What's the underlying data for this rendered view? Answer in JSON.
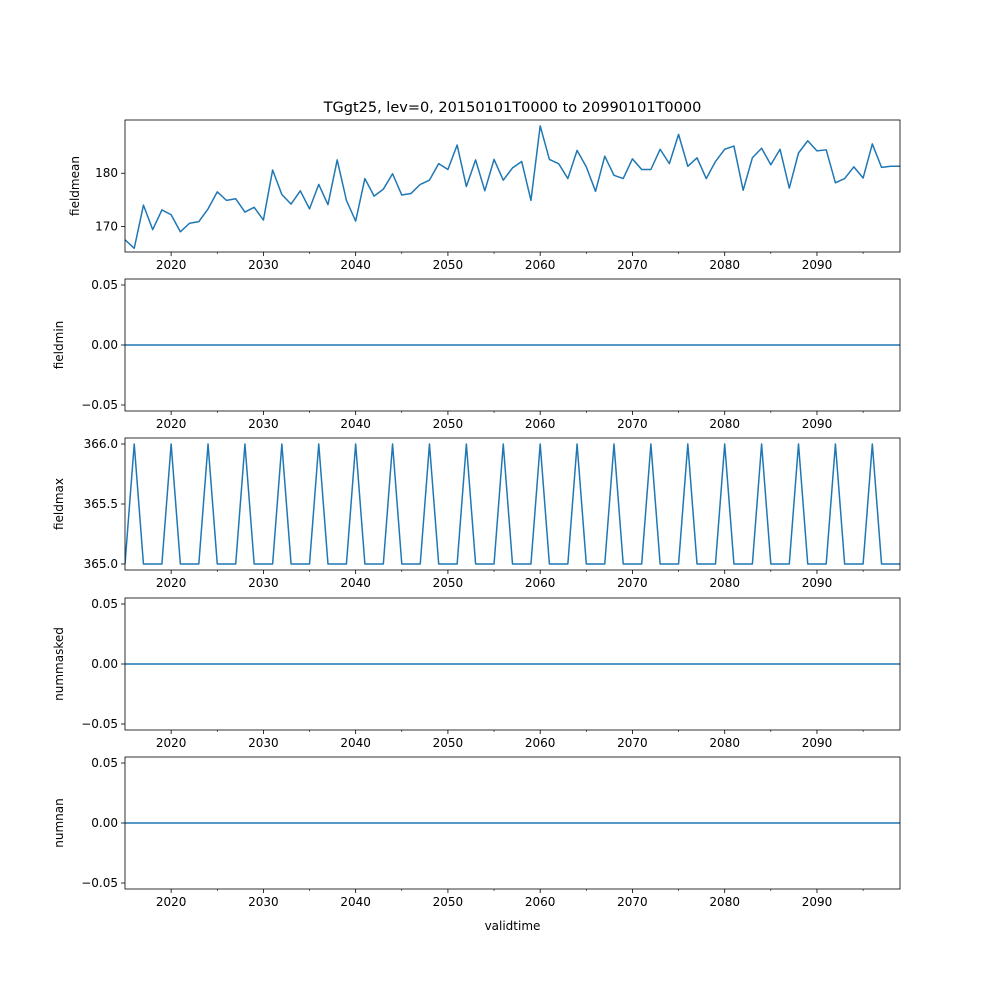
{
  "figure": {
    "title": "TGgt25, lev=0, 20150101T0000 to 20990101T0000",
    "xlabel": "validtime",
    "line_color": "#1f77b4"
  },
  "chart_data": [
    {
      "type": "line",
      "ylabel": "fieldmean",
      "xlim": [
        2015,
        2099
      ],
      "ylim": [
        165.2,
        190.0
      ],
      "xticks": [
        2020,
        2030,
        2040,
        2050,
        2060,
        2070,
        2080,
        2090
      ],
      "xtick_labels": [
        "2020",
        "2030",
        "2040",
        "2050",
        "2060",
        "2070",
        "2080",
        "2090"
      ],
      "yticks": [
        170,
        180
      ],
      "ytick_labels": [
        "170",
        "180"
      ],
      "series": [
        {
          "x": [
            2015,
            2016,
            2017,
            2018,
            2019,
            2020,
            2021,
            2022,
            2023,
            2024,
            2025,
            2026,
            2027,
            2028,
            2029,
            2030,
            2031,
            2032,
            2033,
            2034,
            2035,
            2036,
            2037,
            2038,
            2039,
            2040,
            2041,
            2042,
            2043,
            2044,
            2045,
            2046,
            2047,
            2048,
            2049,
            2050,
            2051,
            2052,
            2053,
            2054,
            2055,
            2056,
            2057,
            2058,
            2059,
            2060,
            2061,
            2062,
            2063,
            2064,
            2065,
            2066,
            2067,
            2068,
            2069,
            2070,
            2071,
            2072,
            2073,
            2074,
            2075,
            2076,
            2077,
            2078,
            2079,
            2080,
            2081,
            2082,
            2083,
            2084,
            2085,
            2086,
            2087,
            2088,
            2089,
            2090,
            2091,
            2092,
            2093,
            2094,
            2095,
            2096,
            2097,
            2098,
            2099
          ],
          "values": [
            167.5,
            165.9,
            174.0,
            169.4,
            173.1,
            172.2,
            169.0,
            170.6,
            170.9,
            173.3,
            176.5,
            174.9,
            175.2,
            172.7,
            173.6,
            171.2,
            180.6,
            176.0,
            174.2,
            176.7,
            173.3,
            177.9,
            174.1,
            182.5,
            174.9,
            171.0,
            179.0,
            175.7,
            177.0,
            179.9,
            175.9,
            176.2,
            177.9,
            178.7,
            181.8,
            180.7,
            185.3,
            177.5,
            182.5,
            176.7,
            182.6,
            178.7,
            181.0,
            182.2,
            174.9,
            188.9,
            182.6,
            181.8,
            179.0,
            184.3,
            181.2,
            176.6,
            183.2,
            179.6,
            179.0,
            182.7,
            180.7,
            180.7,
            184.5,
            181.8,
            187.3,
            181.3,
            182.9,
            179.0,
            182.2,
            184.5,
            185.1,
            176.8,
            182.9,
            184.7,
            181.6,
            184.5,
            177.2,
            183.8,
            186.1,
            184.2,
            184.4,
            178.2,
            179.0,
            181.2,
            179.1,
            185.5,
            181.1,
            181.3,
            181.3
          ]
        }
      ]
    },
    {
      "type": "line",
      "ylabel": "fieldmin",
      "xlim": [
        2015,
        2099
      ],
      "ylim": [
        -0.055,
        0.055
      ],
      "xticks": [
        2020,
        2030,
        2040,
        2050,
        2060,
        2070,
        2080,
        2090
      ],
      "xtick_labels": [
        "2020",
        "2030",
        "2040",
        "2050",
        "2060",
        "2070",
        "2080",
        "2090"
      ],
      "yticks": [
        -0.05,
        0.0,
        0.05
      ],
      "ytick_labels": [
        "−0.05",
        "0.00",
        "0.05"
      ],
      "series": [
        {
          "x": [
            2015,
            2099
          ],
          "values": [
            0,
            0
          ]
        }
      ]
    },
    {
      "type": "line",
      "ylabel": "fieldmax",
      "xlim": [
        2015,
        2099
      ],
      "ylim": [
        364.95,
        366.05
      ],
      "xticks": [
        2020,
        2030,
        2040,
        2050,
        2060,
        2070,
        2080,
        2090
      ],
      "xtick_labels": [
        "2020",
        "2030",
        "2040",
        "2050",
        "2060",
        "2070",
        "2080",
        "2090"
      ],
      "yticks": [
        365.0,
        365.5,
        366.0
      ],
      "ytick_labels": [
        "365.0",
        "365.5",
        "366.0"
      ],
      "series": [
        {
          "x": [
            2015,
            2016,
            2017,
            2018,
            2019,
            2020,
            2021,
            2022,
            2023,
            2024,
            2025,
            2026,
            2027,
            2028,
            2029,
            2030,
            2031,
            2032,
            2033,
            2034,
            2035,
            2036,
            2037,
            2038,
            2039,
            2040,
            2041,
            2042,
            2043,
            2044,
            2045,
            2046,
            2047,
            2048,
            2049,
            2050,
            2051,
            2052,
            2053,
            2054,
            2055,
            2056,
            2057,
            2058,
            2059,
            2060,
            2061,
            2062,
            2063,
            2064,
            2065,
            2066,
            2067,
            2068,
            2069,
            2070,
            2071,
            2072,
            2073,
            2074,
            2075,
            2076,
            2077,
            2078,
            2079,
            2080,
            2081,
            2082,
            2083,
            2084,
            2085,
            2086,
            2087,
            2088,
            2089,
            2090,
            2091,
            2092,
            2093,
            2094,
            2095,
            2096,
            2097,
            2098,
            2099
          ],
          "values": [
            365,
            366,
            365,
            365,
            365,
            366,
            365,
            365,
            365,
            366,
            365,
            365,
            365,
            366,
            365,
            365,
            365,
            366,
            365,
            365,
            365,
            366,
            365,
            365,
            365,
            366,
            365,
            365,
            365,
            366,
            365,
            365,
            365,
            366,
            365,
            365,
            365,
            366,
            365,
            365,
            365,
            366,
            365,
            365,
            365,
            366,
            365,
            365,
            365,
            366,
            365,
            365,
            365,
            366,
            365,
            365,
            365,
            366,
            365,
            365,
            365,
            366,
            365,
            365,
            365,
            366,
            365,
            365,
            365,
            366,
            365,
            365,
            365,
            366,
            365,
            365,
            365,
            366,
            365,
            365,
            365,
            366,
            365,
            365,
            365
          ]
        }
      ]
    },
    {
      "type": "line",
      "ylabel": "nummasked",
      "xlim": [
        2015,
        2099
      ],
      "ylim": [
        -0.055,
        0.055
      ],
      "xticks": [
        2020,
        2030,
        2040,
        2050,
        2060,
        2070,
        2080,
        2090
      ],
      "xtick_labels": [
        "2020",
        "2030",
        "2040",
        "2050",
        "2060",
        "2070",
        "2080",
        "2090"
      ],
      "yticks": [
        -0.05,
        0.0,
        0.05
      ],
      "ytick_labels": [
        "−0.05",
        "0.00",
        "0.05"
      ],
      "series": [
        {
          "x": [
            2015,
            2099
          ],
          "values": [
            0,
            0
          ]
        }
      ]
    },
    {
      "type": "line",
      "ylabel": "numnan",
      "xlim": [
        2015,
        2099
      ],
      "ylim": [
        -0.055,
        0.055
      ],
      "xticks": [
        2020,
        2030,
        2040,
        2050,
        2060,
        2070,
        2080,
        2090
      ],
      "xtick_labels": [
        "2020",
        "2030",
        "2040",
        "2050",
        "2060",
        "2070",
        "2080",
        "2090"
      ],
      "yticks": [
        -0.05,
        0.0,
        0.05
      ],
      "ytick_labels": [
        "−0.05",
        "0.00",
        "0.05"
      ],
      "series": [
        {
          "x": [
            2015,
            2099
          ],
          "values": [
            0,
            0
          ]
        }
      ]
    }
  ]
}
